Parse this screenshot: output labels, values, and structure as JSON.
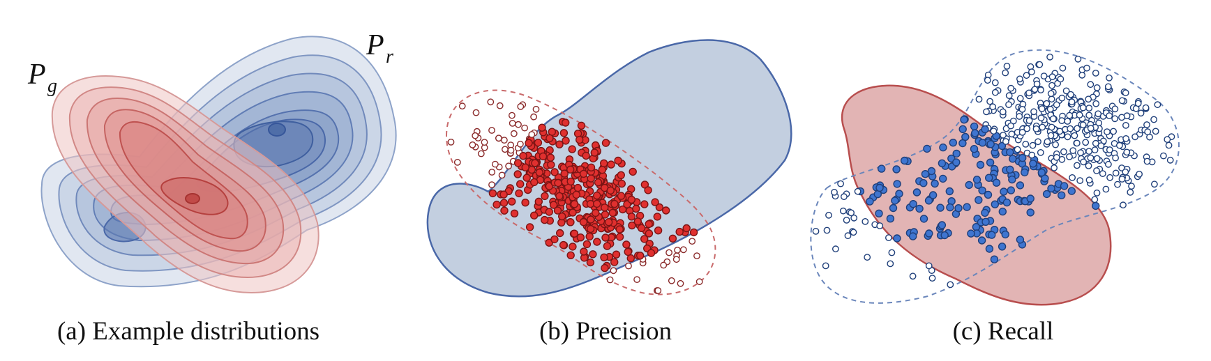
{
  "panels": [
    {
      "id": "a",
      "caption": "(a) Example distributions"
    },
    {
      "id": "b",
      "caption": "(b) Precision"
    },
    {
      "id": "c",
      "caption": "(c) Recall"
    }
  ],
  "labels": {
    "pg_main": "P",
    "pg_sub": "g",
    "pr_main": "P",
    "pr_sub": "r"
  },
  "colors": {
    "real_fill": "#9fb0cc",
    "real_line": "#4a68a8",
    "gen_fill": "#d9898c",
    "gen_line": "#c24a4f",
    "red_dot": "#e0302f",
    "blue_dot": "#3f75d0"
  }
}
